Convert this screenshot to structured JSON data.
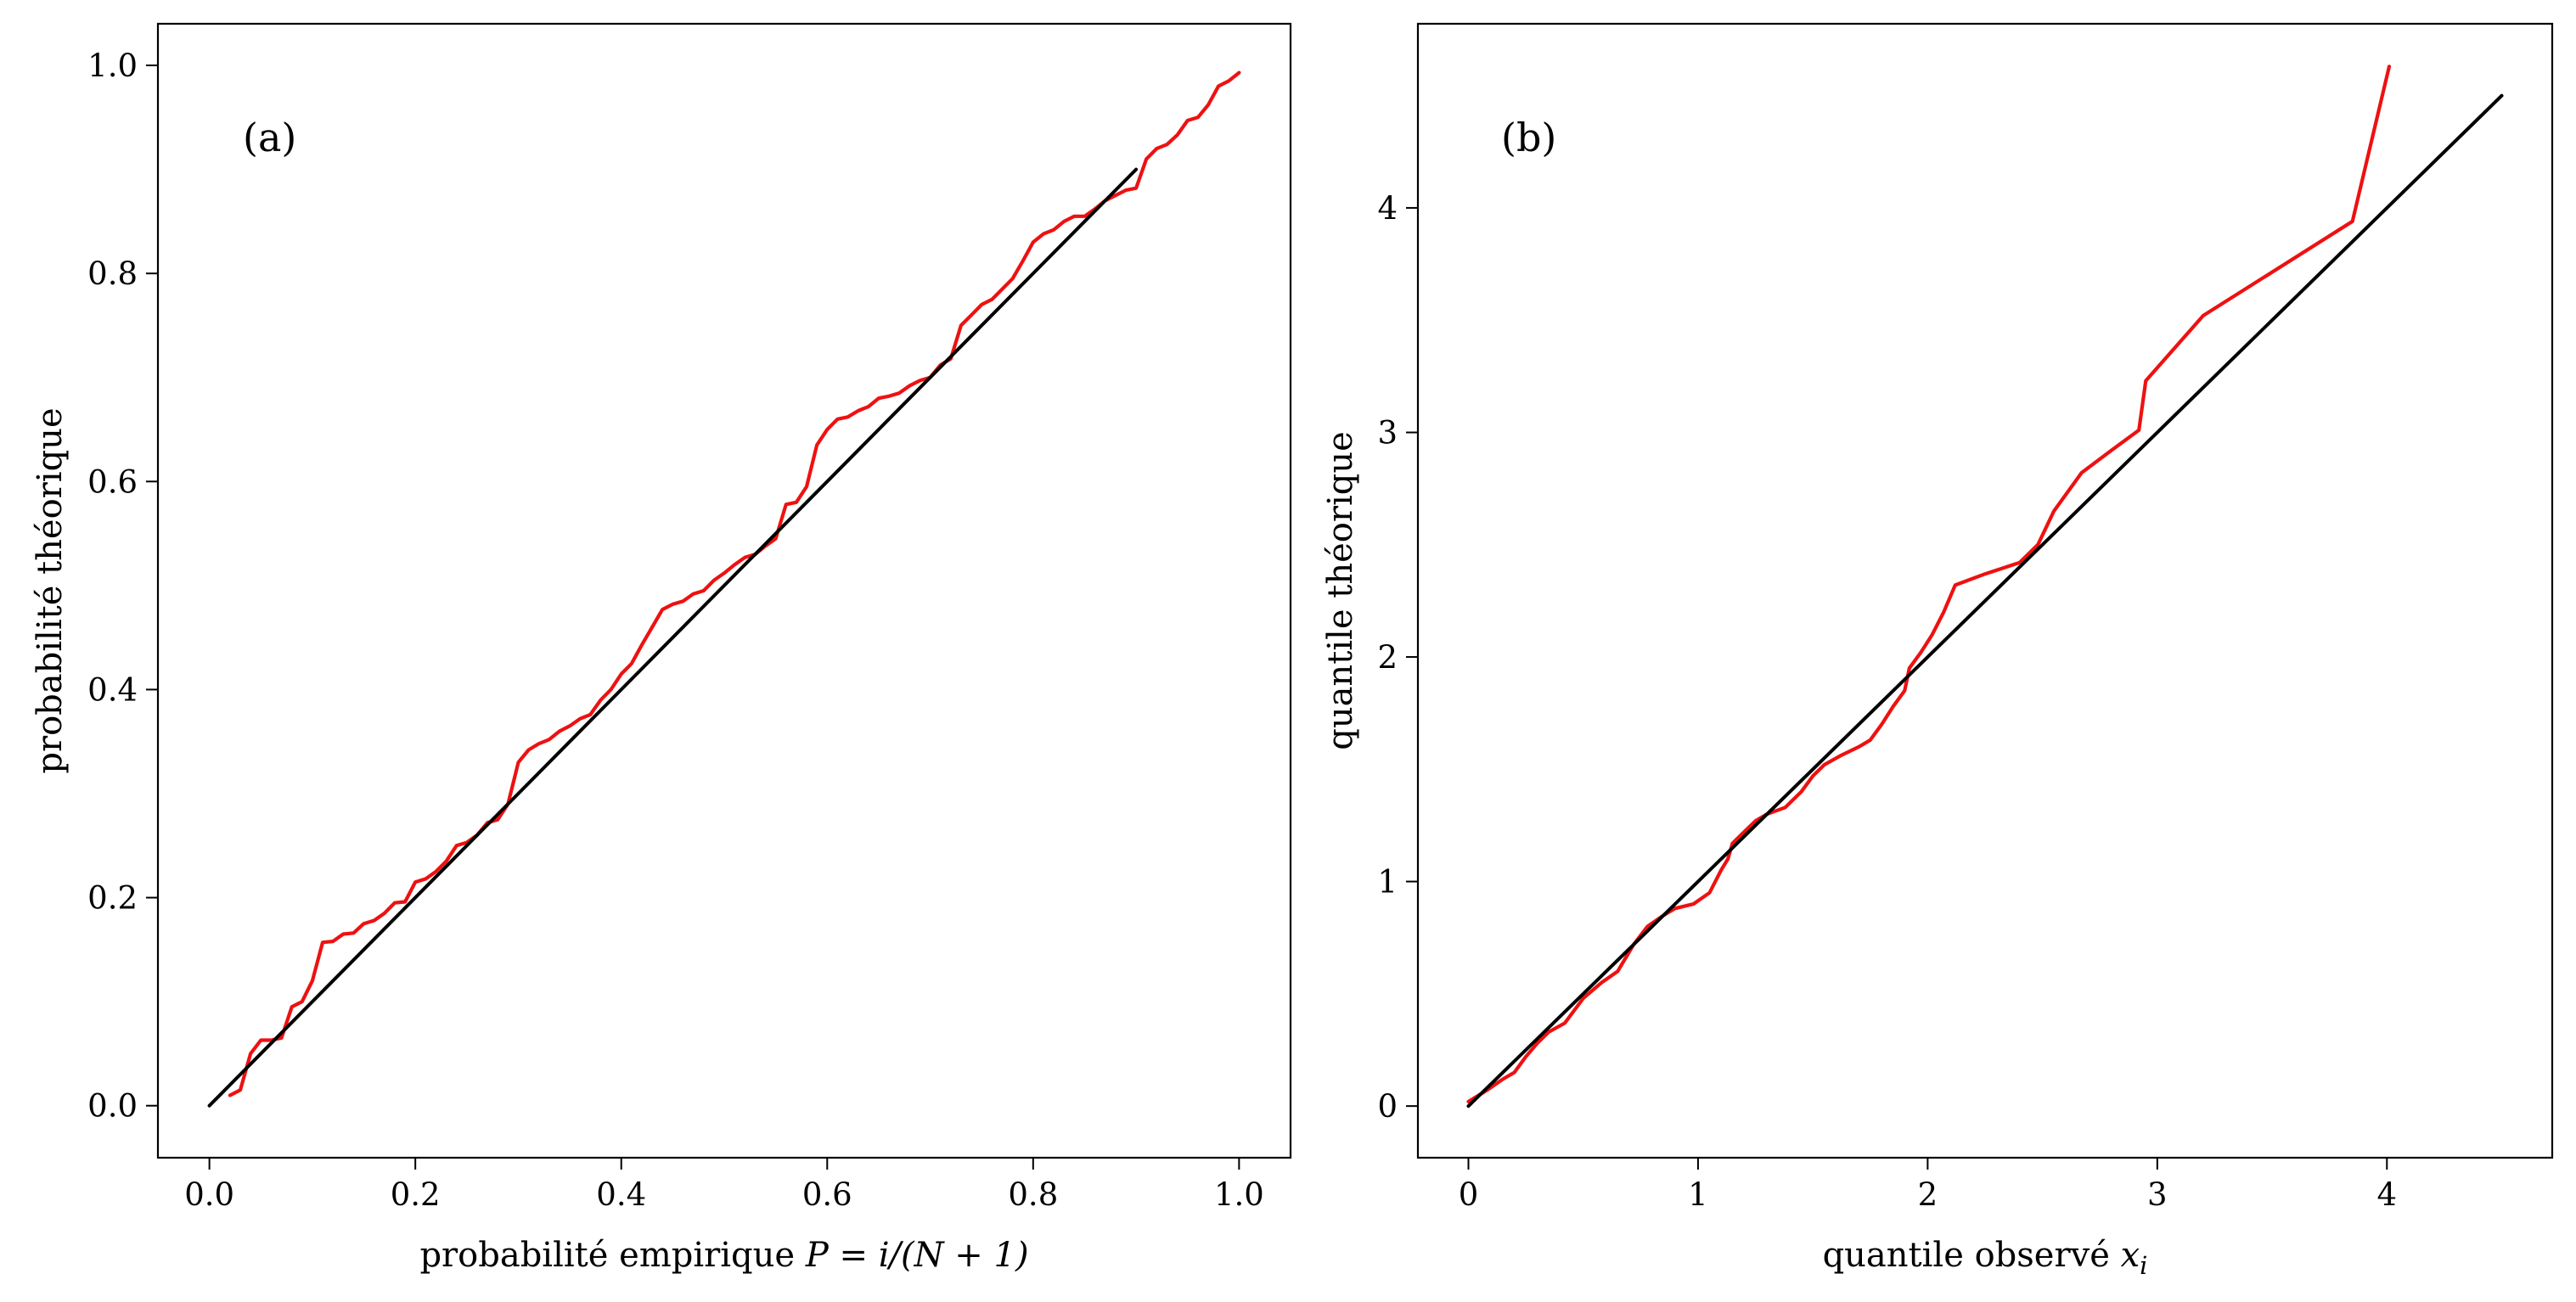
{
  "colors": {
    "data_line": "#ee1111",
    "reference_line": "#000000",
    "frame": "#000000",
    "background": "#ffffff"
  },
  "chart_data": [
    {
      "type": "line",
      "panel_label": "(a)",
      "xlabel": "probabilité empirique",
      "xlabel_math": "P = i/(N + 1)",
      "ylabel": "probabilité théorique",
      "xlim": [
        -0.05,
        1.05
      ],
      "ylim": [
        -0.05,
        1.04
      ],
      "xticks": [
        0.0,
        0.2,
        0.4,
        0.6,
        0.8,
        1.0
      ],
      "xtick_labels": [
        "0.0",
        "0.2",
        "0.4",
        "0.6",
        "0.8",
        "1.0"
      ],
      "yticks": [
        0.0,
        0.2,
        0.4,
        0.6,
        0.8,
        1.0
      ],
      "ytick_labels": [
        "0.0",
        "0.2",
        "0.4",
        "0.6",
        "0.8",
        "1.0"
      ],
      "grid": false,
      "series": [
        {
          "role": "empirical",
          "color": "#ee1111",
          "points": [
            [
              0.02,
              0.01
            ],
            [
              0.03,
              0.015
            ],
            [
              0.04,
              0.05
            ],
            [
              0.05,
              0.063
            ],
            [
              0.06,
              0.063
            ],
            [
              0.07,
              0.065
            ],
            [
              0.08,
              0.095
            ],
            [
              0.09,
              0.1
            ],
            [
              0.1,
              0.12
            ],
            [
              0.11,
              0.157
            ],
            [
              0.12,
              0.158
            ],
            [
              0.13,
              0.165
            ],
            [
              0.14,
              0.166
            ],
            [
              0.15,
              0.175
            ],
            [
              0.16,
              0.178
            ],
            [
              0.17,
              0.185
            ],
            [
              0.18,
              0.195
            ],
            [
              0.19,
              0.196
            ],
            [
              0.2,
              0.215
            ],
            [
              0.21,
              0.218
            ],
            [
              0.22,
              0.225
            ],
            [
              0.23,
              0.235
            ],
            [
              0.24,
              0.25
            ],
            [
              0.25,
              0.253
            ],
            [
              0.26,
              0.26
            ],
            [
              0.27,
              0.272
            ],
            [
              0.28,
              0.275
            ],
            [
              0.29,
              0.29
            ],
            [
              0.3,
              0.33
            ],
            [
              0.31,
              0.342
            ],
            [
              0.32,
              0.348
            ],
            [
              0.33,
              0.352
            ],
            [
              0.34,
              0.36
            ],
            [
              0.35,
              0.365
            ],
            [
              0.36,
              0.372
            ],
            [
              0.37,
              0.376
            ],
            [
              0.38,
              0.39
            ],
            [
              0.39,
              0.4
            ],
            [
              0.4,
              0.415
            ],
            [
              0.41,
              0.425
            ],
            [
              0.42,
              0.443
            ],
            [
              0.43,
              0.46
            ],
            [
              0.44,
              0.477
            ],
            [
              0.45,
              0.482
            ],
            [
              0.46,
              0.485
            ],
            [
              0.47,
              0.492
            ],
            [
              0.48,
              0.495
            ],
            [
              0.49,
              0.505
            ],
            [
              0.5,
              0.512
            ],
            [
              0.51,
              0.52
            ],
            [
              0.52,
              0.527
            ],
            [
              0.53,
              0.53
            ],
            [
              0.54,
              0.538
            ],
            [
              0.55,
              0.545
            ],
            [
              0.56,
              0.578
            ],
            [
              0.57,
              0.58
            ],
            [
              0.58,
              0.595
            ],
            [
              0.59,
              0.635
            ],
            [
              0.6,
              0.65
            ],
            [
              0.61,
              0.66
            ],
            [
              0.62,
              0.662
            ],
            [
              0.63,
              0.668
            ],
            [
              0.64,
              0.672
            ],
            [
              0.65,
              0.68
            ],
            [
              0.66,
              0.682
            ],
            [
              0.67,
              0.685
            ],
            [
              0.68,
              0.692
            ],
            [
              0.69,
              0.697
            ],
            [
              0.7,
              0.7
            ],
            [
              0.71,
              0.712
            ],
            [
              0.72,
              0.718
            ],
            [
              0.73,
              0.75
            ],
            [
              0.74,
              0.76
            ],
            [
              0.75,
              0.77
            ],
            [
              0.76,
              0.775
            ],
            [
              0.77,
              0.785
            ],
            [
              0.78,
              0.795
            ],
            [
              0.79,
              0.812
            ],
            [
              0.8,
              0.83
            ],
            [
              0.81,
              0.838
            ],
            [
              0.82,
              0.842
            ],
            [
              0.83,
              0.85
            ],
            [
              0.84,
              0.855
            ],
            [
              0.85,
              0.855
            ],
            [
              0.86,
              0.862
            ],
            [
              0.87,
              0.87
            ],
            [
              0.88,
              0.875
            ],
            [
              0.89,
              0.88
            ],
            [
              0.9,
              0.882
            ],
            [
              0.91,
              0.91
            ],
            [
              0.92,
              0.92
            ],
            [
              0.93,
              0.924
            ],
            [
              0.94,
              0.933
            ],
            [
              0.95,
              0.947
            ],
            [
              0.96,
              0.95
            ],
            [
              0.97,
              0.962
            ],
            [
              0.98,
              0.98
            ],
            [
              0.99,
              0.985
            ],
            [
              1.0,
              0.993
            ]
          ]
        },
        {
          "role": "reference",
          "color": "#000000",
          "points": [
            [
              0.0,
              0.0
            ],
            [
              0.9,
              0.9
            ]
          ]
        }
      ]
    },
    {
      "type": "line",
      "panel_label": "(b)",
      "xlabel": "quantile observé",
      "xlabel_math": "x",
      "xlabel_math_sub": "i",
      "ylabel": "quantile théorique",
      "xlim": [
        -0.22,
        4.72
      ],
      "ylim": [
        -0.23,
        4.82
      ],
      "xticks": [
        0,
        1,
        2,
        3,
        4
      ],
      "xtick_labels": [
        "0",
        "1",
        "2",
        "3",
        "4"
      ],
      "yticks": [
        0,
        1,
        2,
        3,
        4
      ],
      "ytick_labels": [
        "0",
        "1",
        "2",
        "3",
        "4"
      ],
      "grid": false,
      "series": [
        {
          "role": "empirical",
          "color": "#ee1111",
          "points": [
            [
              0.0,
              0.02
            ],
            [
              0.08,
              0.07
            ],
            [
              0.15,
              0.12
            ],
            [
              0.2,
              0.15
            ],
            [
              0.25,
              0.22
            ],
            [
              0.3,
              0.28
            ],
            [
              0.35,
              0.33
            ],
            [
              0.42,
              0.37
            ],
            [
              0.5,
              0.48
            ],
            [
              0.58,
              0.55
            ],
            [
              0.65,
              0.6
            ],
            [
              0.72,
              0.72
            ],
            [
              0.78,
              0.8
            ],
            [
              0.85,
              0.85
            ],
            [
              0.9,
              0.88
            ],
            [
              0.98,
              0.9
            ],
            [
              1.05,
              0.95
            ],
            [
              1.1,
              1.05
            ],
            [
              1.13,
              1.1
            ],
            [
              1.15,
              1.17
            ],
            [
              1.2,
              1.22
            ],
            [
              1.25,
              1.27
            ],
            [
              1.3,
              1.3
            ],
            [
              1.38,
              1.33
            ],
            [
              1.45,
              1.4
            ],
            [
              1.5,
              1.47
            ],
            [
              1.55,
              1.52
            ],
            [
              1.62,
              1.56
            ],
            [
              1.7,
              1.6
            ],
            [
              1.75,
              1.63
            ],
            [
              1.8,
              1.7
            ],
            [
              1.85,
              1.78
            ],
            [
              1.9,
              1.85
            ],
            [
              1.92,
              1.95
            ],
            [
              1.97,
              2.02
            ],
            [
              2.02,
              2.1
            ],
            [
              2.07,
              2.2
            ],
            [
              2.12,
              2.32
            ],
            [
              2.25,
              2.37
            ],
            [
              2.4,
              2.42
            ],
            [
              2.48,
              2.5
            ],
            [
              2.55,
              2.65
            ],
            [
              2.67,
              2.82
            ],
            [
              2.8,
              2.92
            ],
            [
              2.92,
              3.01
            ],
            [
              2.95,
              3.23
            ],
            [
              3.2,
              3.52
            ],
            [
              3.85,
              3.94
            ],
            [
              4.01,
              4.63
            ]
          ]
        },
        {
          "role": "reference",
          "color": "#000000",
          "points": [
            [
              0.0,
              0.0
            ],
            [
              4.5,
              4.5
            ]
          ]
        }
      ]
    }
  ]
}
